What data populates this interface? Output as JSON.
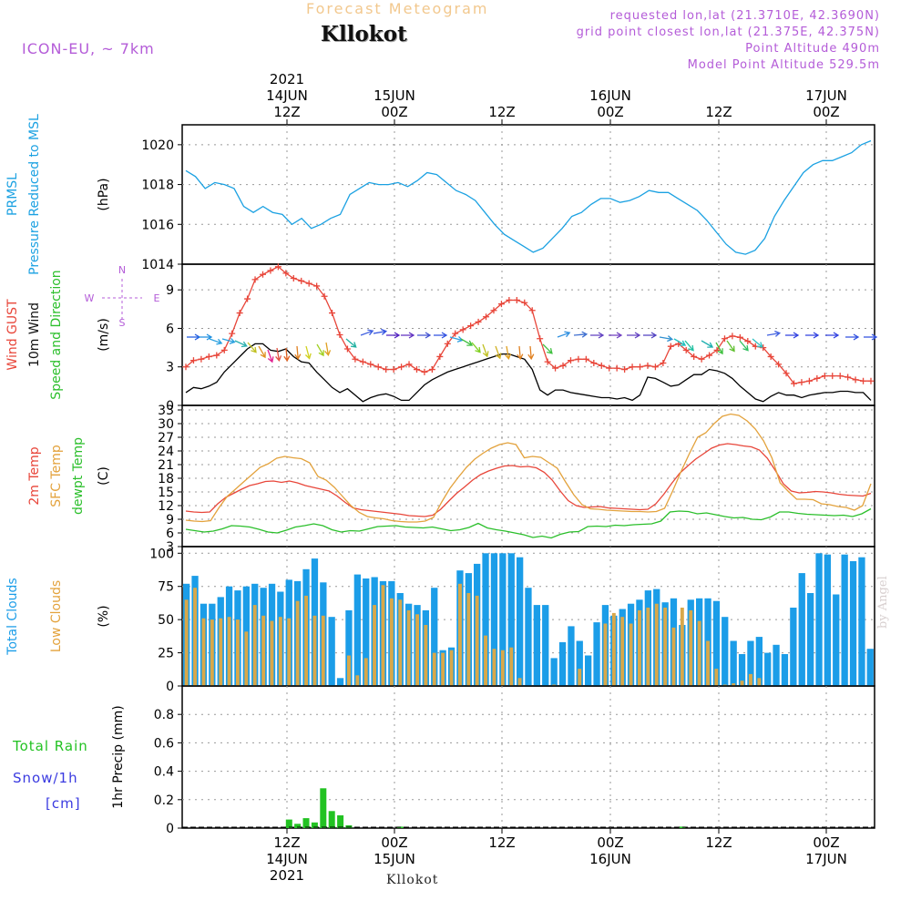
{
  "header": {
    "title": "Forecast Meteogram",
    "station": "Kllokot",
    "model": "ICON-EU, ~ 7km",
    "requested": "requested lon,lat (21.3710E, 42.3690N)",
    "gridpoint": "grid point closest lon,lat (21.375E, 42.375N)",
    "point_alt": "Point Altitude 490m",
    "model_alt": "Model Point Altitude 529.5m",
    "footer": "Kllokot",
    "signature": "by Angel"
  },
  "colors": {
    "pressure": "#1ba1e2",
    "gust": "#e8463a",
    "wind": "#000000",
    "temp2m": "#e8463a",
    "sfc": "#e3a23c",
    "dewpt": "#2bbf2b",
    "total_clouds": "#1b9de8",
    "low_clouds": "#d8a84a",
    "rain": "#22c222",
    "snow": "#3a3ae0",
    "purple": "#b45cd8"
  },
  "chart_data": [
    {
      "type": "line",
      "panel": "pressure",
      "series": [
        {
          "name": "PRMSL Pressure Reduced to MSL",
          "values": [
            1018.7,
            1018.4,
            1017.8,
            1018.1,
            1018.0,
            1017.8,
            1016.9,
            1016.6,
            1016.9,
            1016.6,
            1016.5,
            1016.0,
            1016.3,
            1015.8,
            1016.0,
            1016.3,
            1016.5,
            1017.5,
            1017.8,
            1018.1,
            1018.0,
            1018.0,
            1018.1,
            1017.9,
            1018.2,
            1018.6,
            1018.5,
            1018.1,
            1017.7,
            1017.5,
            1017.2,
            1016.6,
            1016.0,
            1015.5,
            1015.2,
            1014.9,
            1014.6,
            1014.8,
            1015.3,
            1015.8,
            1016.4,
            1016.6,
            1017.0,
            1017.3,
            1017.3,
            1017.1,
            1017.2,
            1017.4,
            1017.7,
            1017.6,
            1017.6,
            1017.3,
            1017.0,
            1016.7,
            1016.2,
            1015.6,
            1015.0,
            1014.6,
            1014.5,
            1014.7,
            1015.3,
            1016.4,
            1017.2,
            1017.9,
            1018.6,
            1019.0,
            1019.2,
            1019.2,
            1019.4,
            1019.6,
            1020.0,
            1020.2
          ]
        }
      ],
      "ylabel": "(hPa)",
      "side_label": [
        "PRMSL",
        "Pressure Reduced to MSL"
      ],
      "ylim": [
        1014,
        1021
      ],
      "yticks": [
        "1014",
        "1016",
        "1018",
        "1020"
      ],
      "grid": true
    },
    {
      "type": "line",
      "panel": "wind",
      "series": [
        {
          "name": "Wind GUST",
          "values": [
            3.0,
            3.5,
            3.6,
            3.8,
            3.9,
            4.3,
            5.6,
            7.2,
            8.3,
            9.8,
            10.2,
            10.5,
            10.8,
            10.3,
            9.9,
            9.7,
            9.5,
            9.3,
            8.5,
            7.2,
            5.5,
            4.4,
            3.6,
            3.4,
            3.2,
            3.0,
            2.8,
            2.8,
            3.0,
            3.2,
            2.8,
            2.6,
            2.8,
            3.8,
            4.8,
            5.6,
            5.9,
            6.2,
            6.5,
            6.9,
            7.4,
            7.9,
            8.2,
            8.2,
            8.0,
            7.4,
            5.2,
            3.4,
            2.9,
            3.1,
            3.5,
            3.6,
            3.6,
            3.3,
            3.1,
            2.9,
            2.9,
            2.8,
            3.0,
            3.0,
            3.1,
            3.0,
            3.3,
            4.6,
            4.8,
            4.3,
            3.8,
            3.6,
            3.9,
            4.3,
            5.2,
            5.4,
            5.3,
            5.0,
            4.6,
            4.5,
            3.8,
            3.2,
            2.5,
            1.7,
            1.8,
            1.9,
            2.1,
            2.3,
            2.3,
            2.3,
            2.2,
            2.0,
            1.9,
            1.9
          ]
        },
        {
          "name": "10m Wind",
          "values": [
            1.0,
            1.4,
            1.3,
            1.5,
            1.8,
            2.6,
            3.2,
            3.8,
            4.4,
            4.8,
            4.8,
            4.3,
            4.2,
            4.4,
            3.8,
            3.4,
            3.3,
            2.6,
            2.0,
            1.4,
            1.0,
            1.3,
            0.8,
            0.3,
            0.6,
            0.8,
            0.9,
            0.7,
            0.4,
            0.4,
            1.0,
            1.6,
            2.0,
            2.3,
            2.6,
            2.8,
            3.0,
            3.2,
            3.4,
            3.6,
            3.8,
            4.0,
            4.0,
            3.8,
            3.6,
            2.8,
            1.2,
            0.8,
            1.2,
            1.2,
            1.0,
            0.9,
            0.8,
            0.7,
            0.6,
            0.6,
            0.5,
            0.6,
            0.4,
            0.8,
            2.2,
            2.1,
            1.8,
            1.5,
            1.6,
            2.0,
            2.4,
            2.4,
            2.8,
            2.7,
            2.5,
            2.1,
            1.5,
            1.0,
            0.5,
            0.3,
            0.7,
            1.0,
            0.8,
            0.8,
            0.6,
            0.8,
            0.9,
            1.0,
            1.0,
            1.1,
            1.1,
            1.0,
            1.0,
            0.4
          ]
        }
      ],
      "ylabel": "(m/s)",
      "side_label": [
        "Wind GUST",
        "10m Wind",
        "Speed and Direction"
      ],
      "compass": {
        "n": "N",
        "s": "S",
        "w": "W",
        "e": "E"
      },
      "ylim": [
        0,
        11
      ],
      "yticks": [
        "0",
        "3",
        "6",
        "9"
      ],
      "grid": true
    },
    {
      "type": "line",
      "panel": "temperature",
      "series": [
        {
          "name": "2m Temp",
          "values": [
            10.8,
            10.6,
            10.5,
            10.6,
            12.4,
            13.8,
            14.7,
            15.6,
            16.4,
            16.8,
            17.3,
            17.4,
            17.1,
            17.4,
            17.0,
            16.4,
            16.0,
            15.6,
            15.2,
            14.1,
            12.7,
            11.5,
            11.1,
            10.9,
            10.7,
            10.5,
            10.3,
            10.1,
            9.8,
            9.7,
            9.6,
            9.9,
            11.2,
            13.0,
            14.7,
            16.1,
            17.6,
            18.8,
            19.6,
            20.2,
            20.7,
            20.8,
            20.5,
            20.6,
            20.3,
            19.3,
            17.6,
            15.2,
            13.1,
            12.0,
            11.6,
            11.7,
            11.8,
            11.5,
            11.4,
            11.3,
            11.2,
            11.1,
            11.2,
            12.4,
            14.5,
            16.9,
            19.1,
            20.7,
            22.2,
            23.4,
            24.6,
            25.3,
            25.6,
            25.4,
            25.1,
            24.9,
            24.2,
            22.4,
            19.7,
            16.8,
            15.2,
            14.8,
            14.9,
            15.1,
            15.0,
            14.8,
            14.5,
            14.3,
            14.2,
            14.1,
            14.7
          ]
        },
        {
          "name": "SFC Temp",
          "values": [
            8.8,
            8.6,
            8.5,
            8.7,
            11.5,
            14.0,
            15.6,
            17.2,
            18.8,
            20.4,
            21.2,
            22.4,
            22.8,
            22.5,
            22.3,
            21.4,
            18.4,
            17.6,
            16.0,
            14.0,
            12.0,
            10.5,
            9.6,
            9.3,
            9.1,
            8.7,
            8.5,
            8.4,
            8.4,
            8.6,
            9.4,
            12.8,
            15.8,
            18.2,
            20.4,
            22.2,
            23.5,
            24.6,
            25.4,
            25.8,
            25.4,
            22.5,
            22.8,
            22.6,
            21.4,
            20.2,
            17.2,
            14.4,
            12.2,
            11.3,
            11.2,
            11.0,
            10.9,
            10.8,
            10.7,
            10.7,
            10.6,
            10.7,
            11.4,
            15.3,
            19.5,
            23.4,
            27.0,
            28.0,
            30.0,
            31.6,
            32.1,
            31.8,
            30.6,
            28.8,
            26.2,
            22.5,
            17.0,
            15.1,
            13.4,
            13.4,
            13.3,
            12.4,
            12.2,
            11.8,
            11.6,
            11.0,
            12.0,
            16.8
          ]
        },
        {
          "name": "dewpt Temp",
          "values": [
            6.8,
            6.5,
            6.2,
            6.4,
            6.9,
            7.6,
            7.5,
            7.3,
            6.8,
            6.2,
            6.0,
            6.6,
            7.3,
            7.6,
            8.0,
            7.6,
            6.7,
            6.2,
            6.5,
            6.4,
            6.9,
            7.4,
            7.5,
            7.6,
            7.3,
            7.2,
            7.1,
            7.3,
            6.9,
            6.5,
            6.7,
            7.2,
            8.1,
            7.1,
            6.7,
            6.4,
            6.0,
            5.6,
            5.0,
            5.3,
            4.9,
            5.7,
            6.2,
            6.3,
            7.4,
            7.5,
            7.4,
            7.7,
            7.6,
            7.8,
            7.9,
            8.0,
            8.6,
            10.6,
            10.8,
            10.7,
            10.2,
            10.4,
            10.0,
            9.6,
            9.3,
            9.4,
            9.0,
            8.9,
            9.5,
            10.6,
            10.6,
            10.3,
            10.1,
            10.0,
            9.9,
            9.8,
            9.9,
            9.6,
            10.2,
            11.3
          ]
        }
      ],
      "ylabel": "(C)",
      "side_label": [
        "2m Temp",
        "SFC Temp",
        "dewpt Temp"
      ],
      "ylim": [
        3,
        34
      ],
      "yticks": [
        "3",
        "6",
        "9",
        "12",
        "15",
        "18",
        "21",
        "24",
        "27",
        "30",
        "33"
      ],
      "grid": true
    },
    {
      "type": "bar",
      "panel": "clouds",
      "series": [
        {
          "name": "Total Clouds",
          "values": [
            77,
            83,
            62,
            62,
            67,
            75,
            72,
            75,
            77,
            74,
            77,
            71,
            80,
            79,
            88,
            96,
            78,
            52,
            6,
            57,
            84,
            81,
            82,
            79,
            79,
            70,
            62,
            61,
            57,
            74,
            27,
            29,
            87,
            85,
            92,
            100,
            100,
            100,
            100,
            97,
            74,
            61,
            61,
            21,
            33,
            45,
            34,
            23,
            48,
            61,
            53,
            58,
            62,
            65,
            72,
            73,
            63,
            66,
            46,
            65,
            66,
            66,
            64,
            52,
            34,
            24,
            34,
            37,
            25,
            31,
            24,
            59,
            85,
            70,
            100,
            99,
            69,
            99,
            94,
            97,
            28
          ]
        },
        {
          "name": "Low Clouds",
          "values": [
            65,
            74,
            51,
            50,
            51,
            52,
            50,
            41,
            61,
            53,
            49,
            52,
            51,
            64,
            68,
            53,
            53,
            0,
            0,
            23,
            8,
            21,
            61,
            76,
            66,
            65,
            57,
            54,
            46,
            25,
            25,
            27,
            77,
            70,
            68,
            38,
            28,
            27,
            29,
            6,
            0,
            0,
            0,
            1,
            0,
            0,
            13,
            0,
            0,
            47,
            55,
            52,
            47,
            57,
            59,
            62,
            59,
            44,
            59,
            57,
            49,
            34,
            13,
            1,
            2,
            4,
            9,
            6,
            0,
            0,
            0,
            0,
            0,
            0,
            0,
            0,
            0,
            0,
            0,
            0,
            0
          ]
        }
      ],
      "ylabel": "(%)",
      "side_label": [
        "Total Clouds",
        "Low Clouds"
      ],
      "ylim": [
        0,
        105
      ],
      "yticks": [
        "0",
        "25",
        "50",
        "75",
        "100"
      ],
      "grid": true
    },
    {
      "type": "bar",
      "panel": "precipitation",
      "series": [
        {
          "name": "Total Rain",
          "values": [
            0,
            0,
            0,
            0,
            0,
            0,
            0,
            0,
            0,
            0,
            0,
            0,
            0.06,
            0.03,
            0.07,
            0.04,
            0.28,
            0.12,
            0.09,
            0.02,
            0.0,
            0.0,
            0,
            0,
            0,
            0.01,
            0,
            0,
            0,
            0,
            0,
            0,
            0,
            0,
            0,
            0,
            0,
            0,
            0,
            0,
            0,
            0,
            0,
            0,
            0,
            0,
            0,
            0,
            0,
            0,
            0,
            0,
            0,
            0,
            0,
            0,
            0,
            0,
            0.01,
            0,
            0,
            0,
            0,
            0,
            0,
            0,
            0,
            0,
            0,
            0,
            0,
            0,
            0,
            0,
            0,
            0,
            0,
            0,
            0,
            0,
            0
          ]
        },
        {
          "name": "Snow/1h [cm]",
          "values": []
        }
      ],
      "ylabel": "1hr Precip (mm)",
      "side_label": [
        "Total  Rain",
        "Snow/1h",
        "[cm]"
      ],
      "ylim": [
        0,
        1.0
      ],
      "yticks": [
        "0",
        "0.2",
        "0.4",
        "0.6",
        "0.8"
      ],
      "grid": true
    }
  ],
  "time_axis": {
    "top": [
      {
        "line1": "2021",
        "line2": "14JUN",
        "line3": "12Z"
      },
      {
        "line1": "",
        "line2": "15JUN",
        "line3": "00Z"
      },
      {
        "line1": "",
        "line2": "",
        "line3": "12Z"
      },
      {
        "line1": "",
        "line2": "16JUN",
        "line3": "00Z"
      },
      {
        "line1": "",
        "line2": "",
        "line3": "12Z"
      },
      {
        "line1": "",
        "line2": "17JUN",
        "line3": "00Z"
      }
    ],
    "bottom": [
      {
        "line1": "12Z",
        "line2": "14JUN",
        "line3": "2021"
      },
      {
        "line1": "00Z",
        "line2": "15JUN",
        "line3": ""
      },
      {
        "line1": "12Z",
        "line2": "",
        "line3": ""
      },
      {
        "line1": "00Z",
        "line2": "16JUN",
        "line3": ""
      },
      {
        "line1": "12Z",
        "line2": "",
        "line3": ""
      },
      {
        "line1": "00Z",
        "line2": "17JUN",
        "line3": ""
      }
    ]
  }
}
